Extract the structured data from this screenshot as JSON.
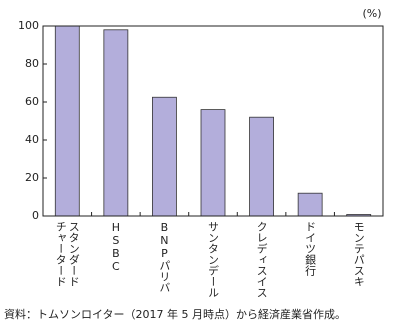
{
  "chart_data": {
    "type": "bar",
    "y_label": "(%)",
    "categories": [
      "スタンダード\nチャータード",
      "HSBC",
      "BNPパリバ",
      "サンタンデール",
      "クレディスイス",
      "ドイツ銀行",
      "モンテパスキ"
    ],
    "values": [
      100,
      98,
      62.5,
      56,
      52,
      12,
      0.8
    ],
    "color": "#b3aedb",
    "ylim": [
      0,
      100
    ],
    "yticks": [
      0,
      20,
      40,
      60,
      80,
      100
    ],
    "source": "資料：トムソンロイター（2017 年 5 月時点）から経済産業省作成。"
  }
}
